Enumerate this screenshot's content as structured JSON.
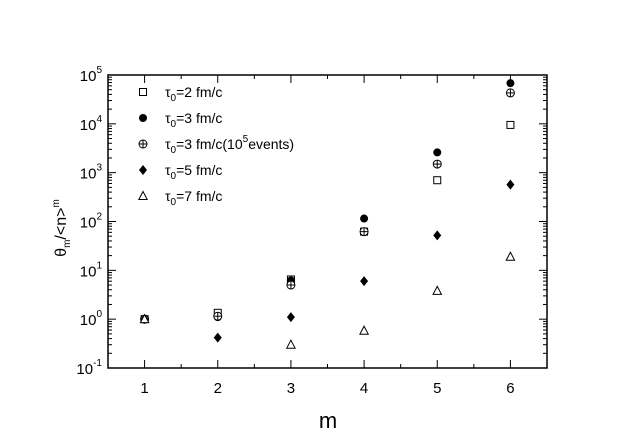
{
  "chart_data": {
    "type": "scatter",
    "xlabel": "m",
    "ylabel": "θm/<n>m",
    "x": [
      1,
      2,
      3,
      4,
      5,
      6
    ],
    "xlim": [
      0.5,
      6.5
    ],
    "ylim": [
      0.1,
      100000
    ],
    "yscale": "log",
    "x_ticks": [
      "1",
      "2",
      "3",
      "4",
      "5",
      "6"
    ],
    "y_ticks": [
      {
        "value": 0.1,
        "base": "10",
        "exp": "-1"
      },
      {
        "value": 1,
        "base": "10",
        "exp": "0"
      },
      {
        "value": 10,
        "base": "10",
        "exp": "1"
      },
      {
        "value": 100,
        "base": "10",
        "exp": "2"
      },
      {
        "value": 1000,
        "base": "10",
        "exp": "3"
      },
      {
        "value": 10000,
        "base": "10",
        "exp": "4"
      },
      {
        "value": 100000,
        "base": "10",
        "exp": "5"
      }
    ],
    "grid": false,
    "legend_position": "top-left",
    "series": [
      {
        "name": "τ0=2 fm/c",
        "label": {
          "main": "τ",
          "sub": "0",
          "rest": "=2 fm/c",
          "sup": "",
          "tail": ""
        },
        "marker": "square-open",
        "values": [
          1.0,
          1.35,
          6.5,
          62,
          700,
          9500
        ]
      },
      {
        "name": "τ0=3 fm/c",
        "label": {
          "main": "τ",
          "sub": "0",
          "rest": "=3 fm/c",
          "sup": "",
          "tail": ""
        },
        "marker": "circle-filled",
        "values": [
          1.0,
          1.1,
          6.2,
          115,
          2600,
          68000
        ]
      },
      {
        "name": "τ0=3 fm/c(10^5events)",
        "label": {
          "main": "τ",
          "sub": "0",
          "rest": "=3 fm/c(10",
          "sup": "5",
          "tail": "events)"
        },
        "marker": "circle-plus",
        "values": [
          1.0,
          1.15,
          5.0,
          62,
          1500,
          43000
        ]
      },
      {
        "name": "τ0=5 fm/c",
        "label": {
          "main": "τ",
          "sub": "0",
          "rest": "=5 fm/c",
          "sup": "",
          "tail": ""
        },
        "marker": "diamond-filled",
        "values": [
          1.0,
          0.42,
          1.1,
          6.0,
          52,
          570
        ]
      },
      {
        "name": "τ0=7 fm/c",
        "label": {
          "main": "τ",
          "sub": "0",
          "rest": "=7 fm/c",
          "sup": "",
          "tail": ""
        },
        "marker": "triangle-open",
        "values": [
          1.0,
          null,
          0.3,
          0.58,
          3.8,
          19
        ]
      }
    ]
  },
  "axis_text": {
    "xlabel": "m",
    "ylabel_main": "θ",
    "ylabel_sub": "m",
    "ylabel_mid": "/<n>",
    "ylabel_sup": "m"
  },
  "colors": {
    "ink": "#000000",
    "background": "#ffffff"
  }
}
